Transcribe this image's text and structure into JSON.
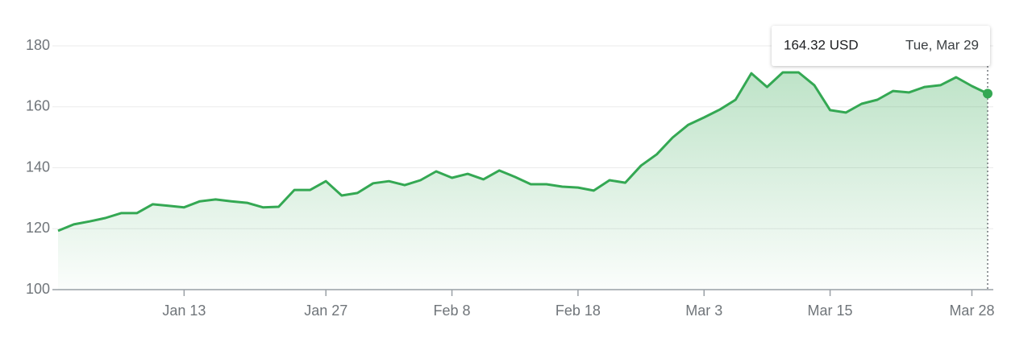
{
  "chart_data": {
    "type": "line",
    "categories": [
      null,
      null,
      null,
      null,
      null,
      null,
      null,
      null,
      "Jan 13",
      null,
      null,
      null,
      null,
      null,
      null,
      null,
      null,
      "Jan 27",
      null,
      null,
      null,
      null,
      null,
      null,
      null,
      "Feb 8",
      null,
      null,
      null,
      null,
      null,
      null,
      null,
      "Feb 18",
      null,
      null,
      null,
      null,
      null,
      null,
      null,
      "Mar 3",
      null,
      null,
      null,
      null,
      null,
      null,
      null,
      "Mar 15",
      null,
      null,
      null,
      null,
      null,
      null,
      null,
      null,
      "Mar 28",
      null
    ],
    "series": [
      {
        "color": "#34a853",
        "values": [
          119.3,
          121.4,
          122.4,
          123.5,
          125.1,
          125.1,
          128,
          127.5,
          127,
          129,
          129.6,
          129,
          128.5,
          127,
          127.2,
          132.7,
          132.7,
          135.6,
          130.9,
          131.7,
          134.9,
          135.6,
          134.3,
          135.9,
          138.8,
          136.7,
          138,
          136.2,
          139.1,
          137,
          134.6,
          134.6,
          133.8,
          133.5,
          132.5,
          135.9,
          135.1,
          140.7,
          144.4,
          149.9,
          154.1,
          156.5,
          159.1,
          162.3,
          171,
          166.5,
          171.3,
          171.3,
          167.1,
          158.9,
          158.1,
          161,
          162.3,
          165.2,
          164.7,
          166.5,
          167.1,
          169.7,
          166.8,
          164.32
        ],
        "value_labels": [
          null,
          null,
          null,
          null,
          null,
          null,
          null,
          null,
          null,
          null,
          null,
          null,
          null,
          null,
          null,
          null,
          null,
          null,
          null,
          null,
          null,
          null,
          null,
          null,
          null,
          null,
          null,
          null,
          null,
          null,
          null,
          null,
          null,
          null,
          null,
          null,
          null,
          null,
          null,
          null,
          null,
          null,
          null,
          null,
          null,
          null,
          null,
          null,
          null,
          null,
          null,
          null,
          null,
          null,
          null,
          null,
          null,
          null,
          null,
          "164.32 USD"
        ]
      }
    ],
    "tooltip": {
      "date": "Tue, Mar 29"
    },
    "ylim": [
      100,
      180
    ],
    "yticks": [
      100,
      120,
      140,
      160,
      180
    ],
    "grid": true
  }
}
